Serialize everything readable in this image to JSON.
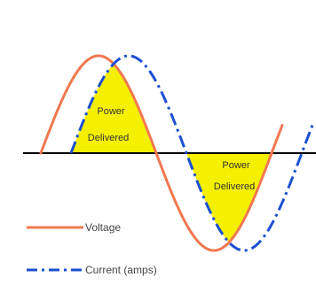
{
  "labels": {
    "positive_power_line1": "Power",
    "positive_power_line2": "Delivered",
    "negative_power_line1": "Power",
    "negative_power_line2": "Delivered"
  },
  "legend": {
    "voltage_label": "Voltage",
    "current_label": "Current (amps)"
  },
  "colors": {
    "voltage": "#f07850",
    "current": "#1b4fd0",
    "power_fill": "#f5f000",
    "axis": "#000000",
    "background": "#ffffff"
  },
  "waves": {
    "voltage_style": "solid",
    "current_style": "dash-dot",
    "phase_relation": "current lags voltage"
  }
}
